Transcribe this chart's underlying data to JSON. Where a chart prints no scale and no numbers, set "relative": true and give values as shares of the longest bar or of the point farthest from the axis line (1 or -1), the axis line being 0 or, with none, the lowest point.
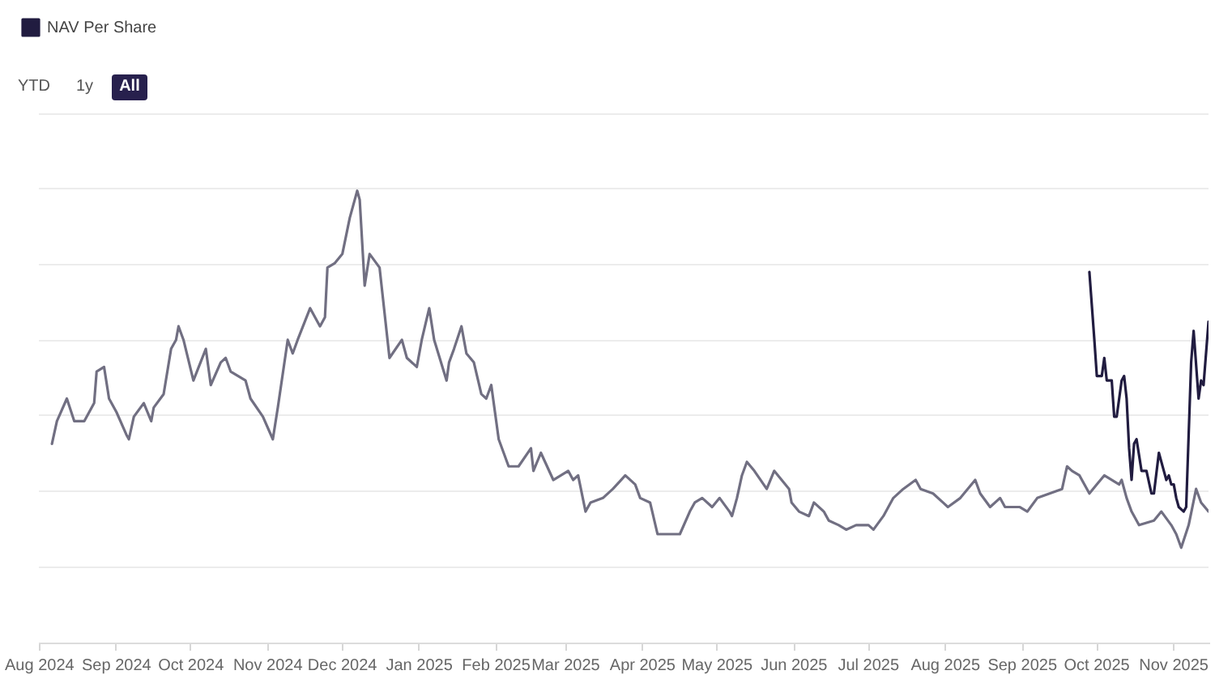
{
  "chart_data": {
    "type": "line",
    "relative": true,
    "grid": "y",
    "legend": "top left",
    "annotations": [
      "YTD",
      "1y",
      "All"
    ],
    "xlim": [
      "2024-08-01",
      "2025-11-15"
    ],
    "xticks": [
      {
        "value": "2024-08-01",
        "label": "Aug 2024"
      },
      {
        "value": "2024-09-01",
        "label": "Sep 2024"
      },
      {
        "value": "2024-10-01",
        "label": "Oct 2024"
      },
      {
        "value": "2024-11-01",
        "label": "Nov 2024"
      },
      {
        "value": "2024-12-01",
        "label": "Dec 2024"
      },
      {
        "value": "2025-01-01",
        "label": "Jan 2025"
      },
      {
        "value": "2025-02-01",
        "label": "Feb 2025"
      },
      {
        "value": "2025-03-01",
        "label": "Mar 2025"
      },
      {
        "value": "2025-04-01",
        "label": "Apr 2025"
      },
      {
        "value": "2025-05-01",
        "label": "May 2025"
      },
      {
        "value": "2025-06-01",
        "label": "Jun 2025"
      },
      {
        "value": "2025-07-01",
        "label": "Jul 2025"
      },
      {
        "value": "2025-08-01",
        "label": "Aug 2025"
      },
      {
        "value": "2025-09-01",
        "label": "Sep 2025"
      },
      {
        "value": "2025-10-01",
        "label": "Oct 2025"
      },
      {
        "value": "2025-11-01",
        "label": "Nov 2025"
      }
    ],
    "series": [
      {
        "color": "#716f82",
        "x": [
          "2024-08-06",
          "2024-08-08",
          "2024-08-12",
          "2024-08-15",
          "2024-08-19",
          "2024-08-23",
          "2024-08-24",
          "2024-08-27",
          "2024-08-29",
          "2024-09-01",
          "2024-09-05",
          "2024-09-06",
          "2024-09-08",
          "2024-09-12",
          "2024-09-15",
          "2024-09-16",
          "2024-09-20",
          "2024-09-23",
          "2024-09-25",
          "2024-09-26",
          "2024-09-28",
          "2024-10-02",
          "2024-10-07",
          "2024-10-09",
          "2024-10-13",
          "2024-10-15",
          "2024-10-17",
          "2024-10-23",
          "2024-10-25",
          "2024-10-30",
          "2024-11-03",
          "2024-11-05",
          "2024-11-09",
          "2024-11-11",
          "2024-11-13",
          "2024-11-18",
          "2024-11-22",
          "2024-11-24",
          "2024-11-25",
          "2024-11-28",
          "2024-12-01",
          "2024-12-04",
          "2024-12-07",
          "2024-12-08",
          "2024-12-10",
          "2024-12-12",
          "2024-12-16",
          "2024-12-20",
          "2024-12-25",
          "2024-12-27",
          "2024-12-31",
          "2025-01-02",
          "2025-01-05",
          "2025-01-07",
          "2025-01-12",
          "2025-01-13",
          "2025-01-15",
          "2025-01-18",
          "2025-01-20",
          "2025-01-23",
          "2025-01-26",
          "2025-01-28",
          "2025-01-30",
          "2025-02-02",
          "2025-02-04",
          "2025-02-06",
          "2025-02-10",
          "2025-02-15",
          "2025-02-16",
          "2025-02-19",
          "2025-02-24",
          "2025-03-02",
          "2025-03-04",
          "2025-03-06",
          "2025-03-09",
          "2025-03-11",
          "2025-03-16",
          "2025-03-20",
          "2025-03-25",
          "2025-03-29",
          "2025-03-31",
          "2025-04-04",
          "2025-04-07",
          "2025-04-10",
          "2025-04-16",
          "2025-04-20",
          "2025-04-22",
          "2025-04-25",
          "2025-04-29",
          "2025-05-02",
          "2025-05-06",
          "2025-05-07",
          "2025-05-09",
          "2025-05-11",
          "2025-05-13",
          "2025-05-16",
          "2025-05-21",
          "2025-05-24",
          "2025-05-30",
          "2025-05-31",
          "2025-06-03",
          "2025-06-07",
          "2025-06-09",
          "2025-06-13",
          "2025-06-15",
          "2025-06-19",
          "2025-06-22",
          "2025-06-26",
          "2025-07-01",
          "2025-07-03",
          "2025-07-07",
          "2025-07-09",
          "2025-07-11",
          "2025-07-15",
          "2025-07-20",
          "2025-07-22",
          "2025-07-27",
          "2025-07-31",
          "2025-08-02",
          "2025-08-07",
          "2025-08-13",
          "2025-08-15",
          "2025-08-19",
          "2025-08-23",
          "2025-08-25",
          "2025-08-31",
          "2025-09-03",
          "2025-09-07",
          "2025-09-12",
          "2025-09-17",
          "2025-09-19",
          "2025-09-21",
          "2025-09-24",
          "2025-09-28",
          "2025-10-01",
          "2025-10-04",
          "2025-10-10",
          "2025-10-11",
          "2025-10-13",
          "2025-10-15",
          "2025-10-18",
          "2025-10-24",
          "2025-10-27",
          "2025-10-31",
          "2025-11-02",
          "2025-11-04",
          "2025-11-07",
          "2025-11-10",
          "2025-11-12",
          "2025-11-15"
        ],
        "values": [
          0.44,
          0.49,
          0.54,
          0.49,
          0.49,
          0.53,
          0.6,
          0.61,
          0.54,
          0.51,
          0.46,
          0.45,
          0.5,
          0.53,
          0.49,
          0.52,
          0.55,
          0.65,
          0.67,
          0.7,
          0.67,
          0.58,
          0.65,
          0.57,
          0.62,
          0.63,
          0.6,
          0.58,
          0.54,
          0.5,
          0.45,
          0.52,
          0.67,
          0.64,
          0.67,
          0.74,
          0.7,
          0.72,
          0.83,
          0.84,
          0.86,
          0.94,
          1.0,
          0.98,
          0.79,
          0.86,
          0.83,
          0.63,
          0.67,
          0.63,
          0.61,
          0.67,
          0.74,
          0.67,
          0.58,
          0.62,
          0.65,
          0.7,
          0.64,
          0.62,
          0.55,
          0.54,
          0.57,
          0.45,
          0.42,
          0.39,
          0.39,
          0.43,
          0.38,
          0.42,
          0.36,
          0.38,
          0.36,
          0.37,
          0.29,
          0.31,
          0.32,
          0.34,
          0.37,
          0.35,
          0.32,
          0.31,
          0.24,
          0.24,
          0.24,
          0.29,
          0.31,
          0.32,
          0.3,
          0.32,
          0.29,
          0.28,
          0.32,
          0.37,
          0.4,
          0.38,
          0.34,
          0.38,
          0.34,
          0.31,
          0.29,
          0.28,
          0.31,
          0.29,
          0.27,
          0.26,
          0.25,
          0.26,
          0.26,
          0.25,
          0.28,
          0.3,
          0.32,
          0.34,
          0.36,
          0.34,
          0.33,
          0.31,
          0.3,
          0.32,
          0.36,
          0.33,
          0.3,
          0.32,
          0.3,
          0.3,
          0.29,
          0.32,
          0.33,
          0.34,
          0.39,
          0.38,
          0.37,
          0.33,
          0.35,
          0.37,
          0.35,
          0.36,
          0.32,
          0.29,
          0.26,
          0.27,
          0.29,
          0.26,
          0.24,
          0.21,
          0.26,
          0.34,
          0.31,
          0.29
        ]
      },
      {
        "name": "NAV Per Share",
        "color": "#211c40",
        "x": [
          "2025-09-28",
          "2025-09-30",
          "2025-10-01",
          "2025-10-03",
          "2025-10-04",
          "2025-10-05",
          "2025-10-07",
          "2025-10-08",
          "2025-10-09",
          "2025-10-11",
          "2025-10-12",
          "2025-10-13",
          "2025-10-14",
          "2025-10-15",
          "2025-10-16",
          "2025-10-17",
          "2025-10-19",
          "2025-10-21",
          "2025-10-23",
          "2025-10-24",
          "2025-10-26",
          "2025-10-28",
          "2025-10-29",
          "2025-10-30",
          "2025-10-31",
          "2025-11-01",
          "2025-11-02",
          "2025-11-03",
          "2025-11-05",
          "2025-11-06",
          "2025-11-08",
          "2025-11-09",
          "2025-11-11",
          "2025-11-12",
          "2025-11-13",
          "2025-11-15"
        ],
        "values": [
          0.82,
          0.67,
          0.59,
          0.59,
          0.63,
          0.58,
          0.58,
          0.5,
          0.5,
          0.58,
          0.59,
          0.54,
          0.43,
          0.36,
          0.44,
          0.45,
          0.38,
          0.38,
          0.33,
          0.33,
          0.42,
          0.38,
          0.36,
          0.37,
          0.35,
          0.35,
          0.32,
          0.3,
          0.29,
          0.3,
          0.62,
          0.69,
          0.54,
          0.58,
          0.57,
          0.71
        ]
      }
    ]
  }
}
